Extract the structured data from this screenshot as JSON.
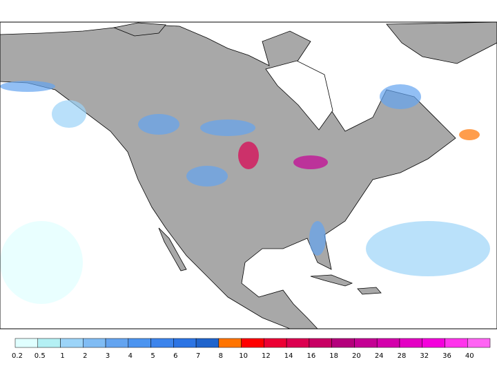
{
  "legend": {
    "bins": [
      0.2,
      0.5,
      1,
      2,
      3,
      4,
      5,
      6,
      7,
      8,
      10,
      12,
      14,
      16,
      18,
      20,
      24,
      28,
      32,
      36,
      40
    ],
    "colors": [
      "#e0ffff",
      "#b4f0f4",
      "#9cd4f8",
      "#80bcf4",
      "#64a4f0",
      "#4c94f0",
      "#3c84ec",
      "#2c74e4",
      "#2064cc",
      "#ff7400",
      "#ff0000",
      "#ec0034",
      "#dc0050",
      "#c80064",
      "#b4007c",
      "#c40094",
      "#d400ac",
      "#e400c4",
      "#f400dc",
      "#ff34ec",
      "#ff64f4"
    ]
  }
}
